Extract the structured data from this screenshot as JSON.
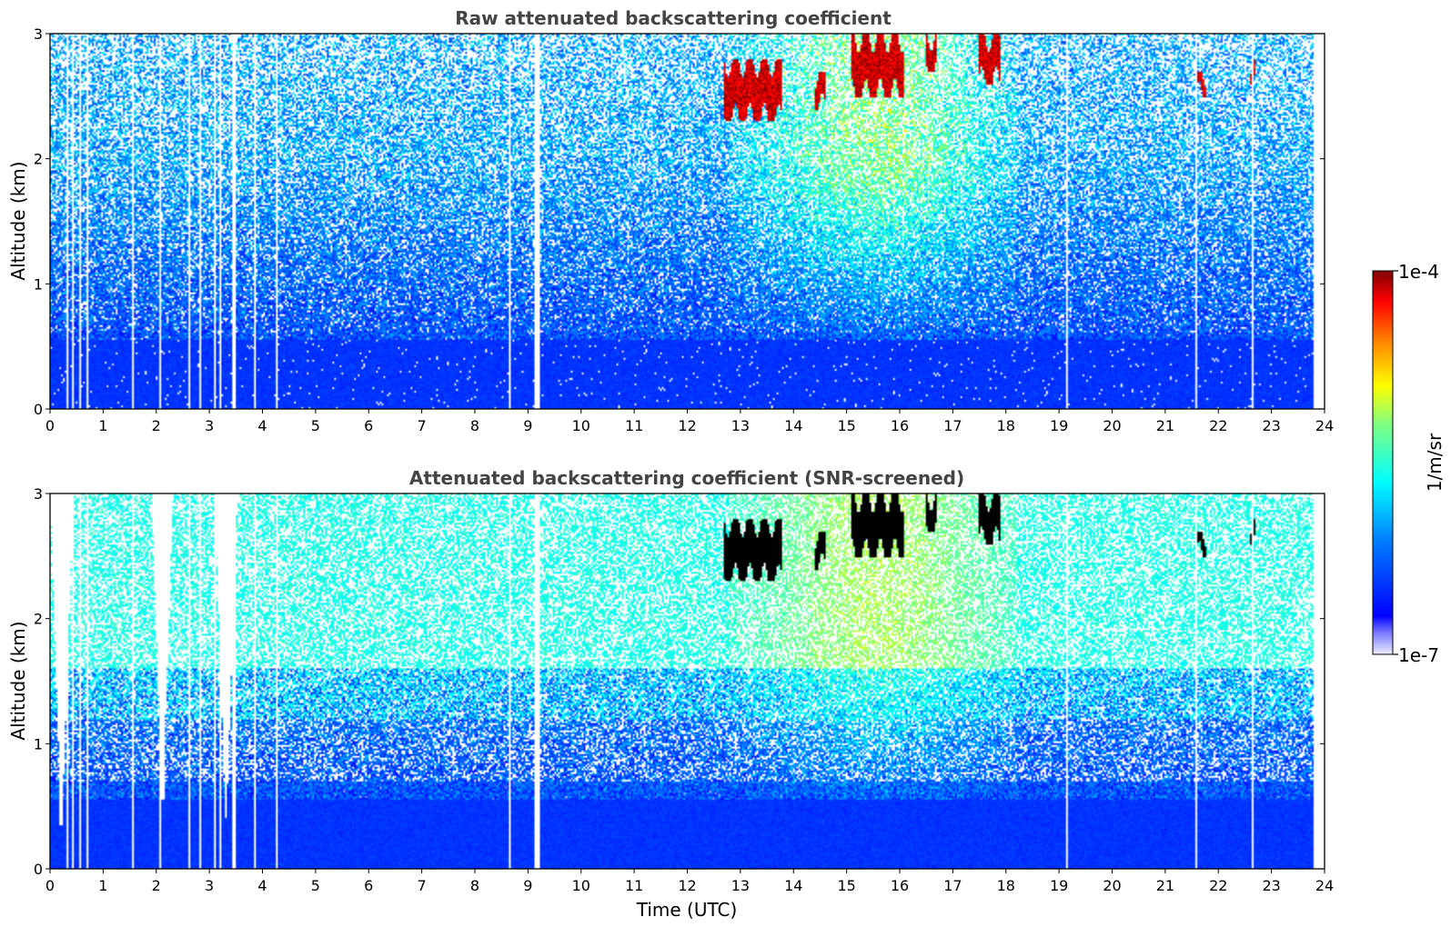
{
  "chart_data": [
    {
      "type": "heatmap",
      "title": "Raw attenuated backscattering coefficient",
      "xlabel": "",
      "ylabel": "Altitude (km)",
      "xlim": [
        0,
        24
      ],
      "ylim": [
        0,
        3
      ],
      "xticks": [
        "0",
        "1",
        "2",
        "3",
        "4",
        "5",
        "6",
        "7",
        "8",
        "9",
        "10",
        "11",
        "12",
        "13",
        "14",
        "15",
        "16",
        "17",
        "18",
        "19",
        "20",
        "21",
        "22",
        "23",
        "24"
      ],
      "yticks": [
        "0",
        "1",
        "2",
        "3"
      ],
      "screened": false,
      "features": {
        "aerosol_layer_top_km": 0.6,
        "enhanced_region_hours": [
          12.8,
          18.2
        ],
        "cloud_patches": [
          {
            "t": [
              12.7,
              13.8
            ],
            "alt": [
              2.3,
              2.8
            ]
          },
          {
            "t": [
              14.4,
              14.6
            ],
            "alt": [
              2.4,
              2.7
            ]
          },
          {
            "t": [
              15.1,
              16.1
            ],
            "alt": [
              2.5,
              3.0
            ]
          },
          {
            "t": [
              16.5,
              16.7
            ],
            "alt": [
              2.7,
              3.0
            ]
          },
          {
            "t": [
              17.5,
              17.9
            ],
            "alt": [
              2.6,
              3.0
            ]
          },
          {
            "t": [
              21.6,
              21.8
            ],
            "alt": [
              2.5,
              2.7
            ]
          },
          {
            "t": [
              22.6,
              22.7
            ],
            "alt": [
              2.6,
              2.8
            ]
          }
        ],
        "gap_hours": [
          0.3,
          0.4,
          0.55,
          0.7,
          1.55,
          2.05,
          2.6,
          2.8,
          3.1,
          3.2,
          3.45,
          3.85,
          4.25,
          8.65,
          9.15,
          9.2,
          19.15,
          21.6,
          22.65
        ]
      }
    },
    {
      "type": "heatmap",
      "title": "Attenuated backscattering coefficient (SNR-screened)",
      "xlabel": "Time (UTC)",
      "ylabel": "Altitude (km)",
      "xlim": [
        0,
        24
      ],
      "ylim": [
        0,
        3
      ],
      "xticks": [
        "0",
        "1",
        "2",
        "3",
        "4",
        "5",
        "6",
        "7",
        "8",
        "9",
        "10",
        "11",
        "12",
        "13",
        "14",
        "15",
        "16",
        "17",
        "18",
        "19",
        "20",
        "21",
        "22",
        "23",
        "24"
      ],
      "yticks": [
        "0",
        "1",
        "2",
        "3"
      ],
      "screened": true,
      "features": {
        "screened_valleys": [
          {
            "t": 0.2,
            "bottom_km": 0.35
          },
          {
            "t": 2.1,
            "bottom_km": 0.55
          },
          {
            "t": 3.3,
            "bottom_km": 0.4
          }
        ]
      }
    }
  ],
  "colorbar": {
    "label": "1/m/sr",
    "min_label": "1e-7",
    "max_label": "1e-4",
    "scale": "log",
    "colors": [
      "#e6e6ff",
      "#0000ff",
      "#0080ff",
      "#00ffff",
      "#80ff80",
      "#ffff00",
      "#ff8000",
      "#ff0000",
      "#800000"
    ]
  }
}
